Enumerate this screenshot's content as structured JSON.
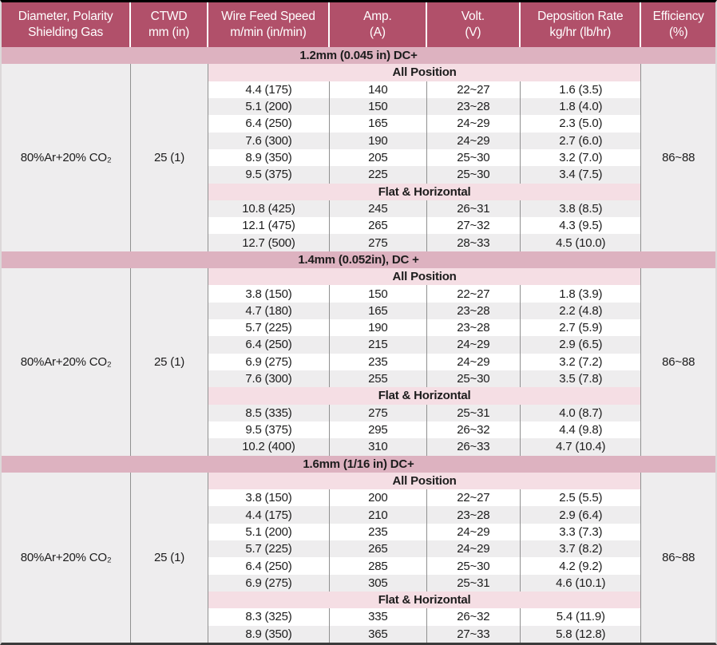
{
  "table": {
    "colors": {
      "header-bg": "#b1506a",
      "section-band-bg": "#ddb2c0",
      "position-band-bg": "#f5dee4",
      "gray-cell-bg": "#eeedee",
      "white-row-bg": "#ffffff",
      "divider": "#909090",
      "text-dark": "#1c1c1c"
    },
    "columns": [
      {
        "id": "shielding-gas",
        "line1": "Diameter, Polarity",
        "line2": "Shielding Gas"
      },
      {
        "id": "ctwd",
        "line1": "CTWD",
        "line2": "mm (in)"
      },
      {
        "id": "wire-feed-speed",
        "line1": "Wire Feed Speed",
        "line2": "m/min (in/min)"
      },
      {
        "id": "amperage",
        "line1": "Amp.",
        "line2": "(A)"
      },
      {
        "id": "voltage",
        "line1": "Volt.",
        "line2": "(V)"
      },
      {
        "id": "deposition-rate",
        "line1": "Deposition Rate",
        "line2": "kg/hr (lb/hr)"
      },
      {
        "id": "efficiency",
        "line1": "Efficiency",
        "line2": "(%)"
      }
    ],
    "sections": [
      {
        "title": "1.2mm (0.045 in) DC+",
        "shielding_gas": "80%Ar+20% CO₂",
        "ctwd": "25 (1)",
        "efficiency": "86~88",
        "blocks": [
          {
            "position": "All Position",
            "zebra_start": "white",
            "rows": [
              [
                "4.4 (175)",
                "140",
                "22~27",
                "1.6 (3.5)"
              ],
              [
                "5.1 (200)",
                "150",
                "23~28",
                "1.8 (4.0)"
              ],
              [
                "6.4 (250)",
                "165",
                "24~29",
                "2.3 (5.0)"
              ],
              [
                "7.6 (300)",
                "190",
                "24~29",
                "2.7 (6.0)"
              ],
              [
                "8.9 (350)",
                "205",
                "25~30",
                "3.2 (7.0)"
              ],
              [
                "9.5 (375)",
                "225",
                "25~30",
                "3.4 (7.5)"
              ]
            ]
          },
          {
            "position": "Flat & Horizontal",
            "zebra_start": "gray",
            "rows": [
              [
                "10.8 (425)",
                "245",
                "26~31",
                "3.8 (8.5)"
              ],
              [
                "12.1 (475)",
                "265",
                "27~32",
                "4.3 (9.5)"
              ],
              [
                "12.7 (500)",
                "275",
                "28~33",
                "4.5 (10.0)"
              ]
            ]
          }
        ]
      },
      {
        "title": "1.4mm (0.052in), DC +",
        "shielding_gas": "80%Ar+20% CO₂",
        "ctwd": "25 (1)",
        "efficiency": "86~88",
        "blocks": [
          {
            "position": "All Position",
            "zebra_start": "white",
            "rows": [
              [
                "3.8 (150)",
                "150",
                "22~27",
                "1.8 (3.9)"
              ],
              [
                "4.7 (180)",
                "165",
                "23~28",
                "2.2 (4.8)"
              ],
              [
                "5.7 (225)",
                "190",
                "23~28",
                "2.7 (5.9)"
              ],
              [
                "6.4 (250)",
                "215",
                "24~29",
                "2.9 (6.5)"
              ],
              [
                "6.9 (275)",
                "235",
                "24~29",
                "3.2 (7.2)"
              ],
              [
                "7.6 (300)",
                "255",
                "25~30",
                "3.5 (7.8)"
              ]
            ]
          },
          {
            "position": "Flat & Horizontal",
            "zebra_start": "gray",
            "rows": [
              [
                "8.5 (335)",
                "275",
                "25~31",
                "4.0 (8.7)"
              ],
              [
                "9.5 (375)",
                "295",
                "26~32",
                "4.4 (9.8)"
              ],
              [
                "10.2 (400)",
                "310",
                "26~33",
                "4.7 (10.4)"
              ]
            ]
          }
        ]
      },
      {
        "title": "1.6mm (1/16 in) DC+",
        "shielding_gas": "80%Ar+20% CO₂",
        "ctwd": "25 (1)",
        "efficiency": "86~88",
        "blocks": [
          {
            "position": "All Position",
            "zebra_start": "white",
            "rows": [
              [
                "3.8 (150)",
                "200",
                "22~27",
                "2.5 (5.5)"
              ],
              [
                "4.4 (175)",
                "210",
                "23~28",
                "2.9 (6.4)"
              ],
              [
                "5.1 (200)",
                "235",
                "24~29",
                "3.3 (7.3)"
              ],
              [
                "5.7 (225)",
                "265",
                "24~29",
                "3.7 (8.2)"
              ],
              [
                "6.4 (250)",
                "285",
                "25~30",
                "4.2 (9.2)"
              ],
              [
                "6.9 (275)",
                "305",
                "25~31",
                "4.6 (10.1)"
              ]
            ]
          },
          {
            "position": "Flat & Horizontal",
            "zebra_start": "white",
            "rows": [
              [
                "8.3 (325)",
                "335",
                "26~32",
                "5.4 (11.9)"
              ],
              [
                "8.9 (350)",
                "365",
                "27~33",
                "5.8 (12.8)"
              ]
            ]
          }
        ]
      }
    ]
  }
}
